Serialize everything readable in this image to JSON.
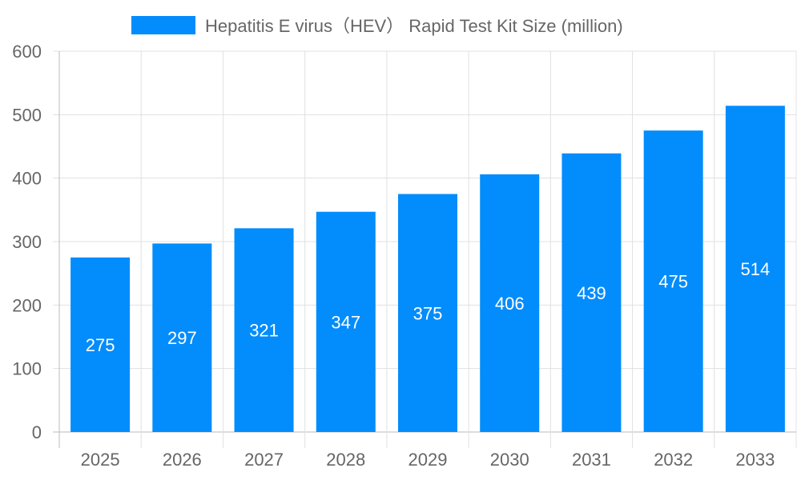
{
  "chart_data": {
    "type": "bar",
    "title": "",
    "legend": {
      "position": "top",
      "entries": [
        "Hepatitis E virus（HEV） Rapid Test Kit Size (million)"
      ]
    },
    "categories": [
      "2025",
      "2026",
      "2027",
      "2028",
      "2029",
      "2030",
      "2031",
      "2032",
      "2033"
    ],
    "series": [
      {
        "name": "Hepatitis E virus（HEV） Rapid Test Kit Size (million)",
        "values": [
          275,
          297,
          321,
          347,
          375,
          406,
          439,
          475,
          514
        ],
        "color": "#038cfc"
      }
    ],
    "ylim": [
      0,
      600
    ],
    "yticks": [
      0,
      100,
      200,
      300,
      400,
      500,
      600
    ],
    "grid": true,
    "data_labels": true,
    "xlabel": "",
    "ylabel": ""
  }
}
